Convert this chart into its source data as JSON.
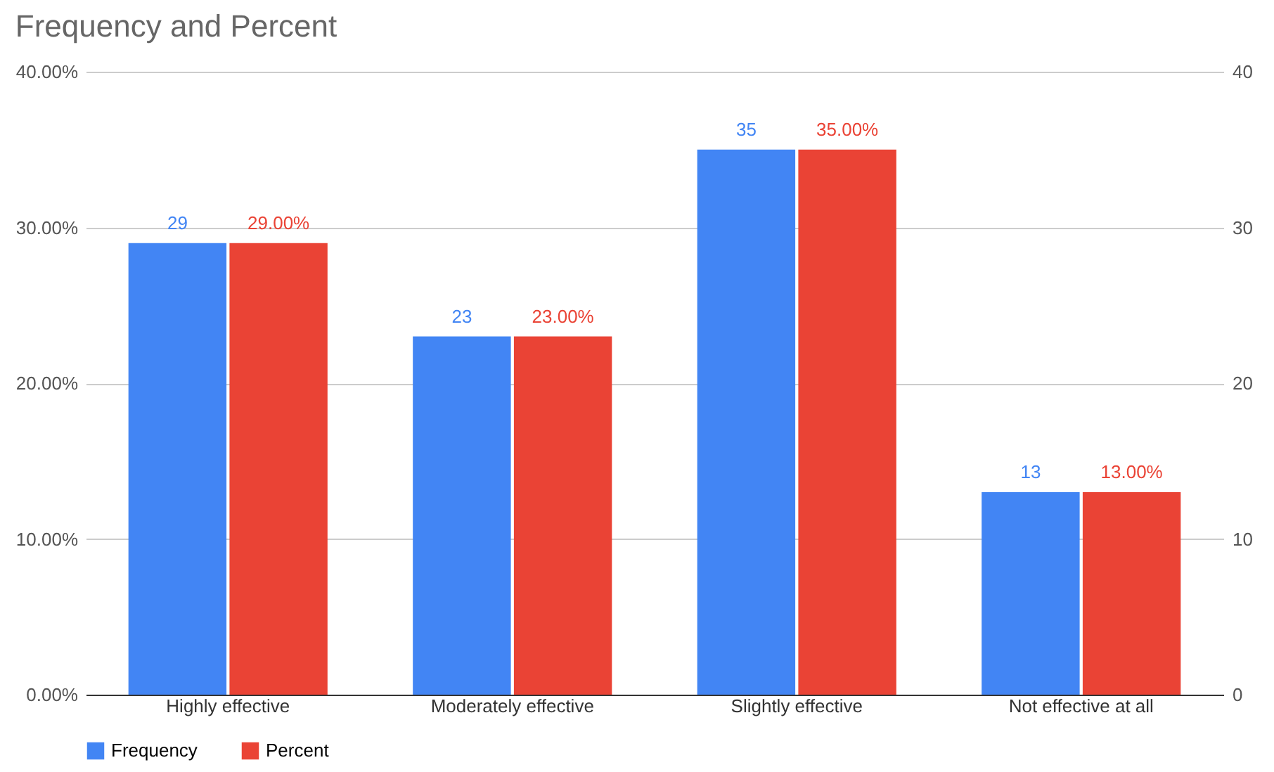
{
  "chart_data": {
    "type": "bar",
    "title": "Frequency and Percent",
    "categories": [
      "Highly effective",
      "Moderately effective",
      "Slightly effective",
      "Not effective at all"
    ],
    "series": [
      {
        "name": "Frequency",
        "color": "#4285f4",
        "axis": "y2",
        "values": [
          29,
          23,
          35,
          13
        ],
        "value_labels": [
          "29",
          "23",
          "35",
          "13"
        ]
      },
      {
        "name": "Percent",
        "color": "#ea4335",
        "values": [
          29,
          23,
          35,
          13
        ],
        "value_labels": [
          "29.00%",
          "23.00%",
          "35.00%",
          "13.00%"
        ]
      }
    ],
    "ylim": [
      0,
      40
    ],
    "yticks": [
      {
        "value": 0,
        "label": "0.00%"
      },
      {
        "value": 10,
        "label": "10.00%"
      },
      {
        "value": 20,
        "label": "20.00%"
      },
      {
        "value": 30,
        "label": "30.00%"
      },
      {
        "value": 40,
        "label": "40.00%"
      }
    ],
    "y2lim": [
      0,
      40
    ],
    "y2ticks": [
      0,
      10,
      20,
      30,
      40
    ],
    "grid": "y",
    "legend": "bottom"
  }
}
